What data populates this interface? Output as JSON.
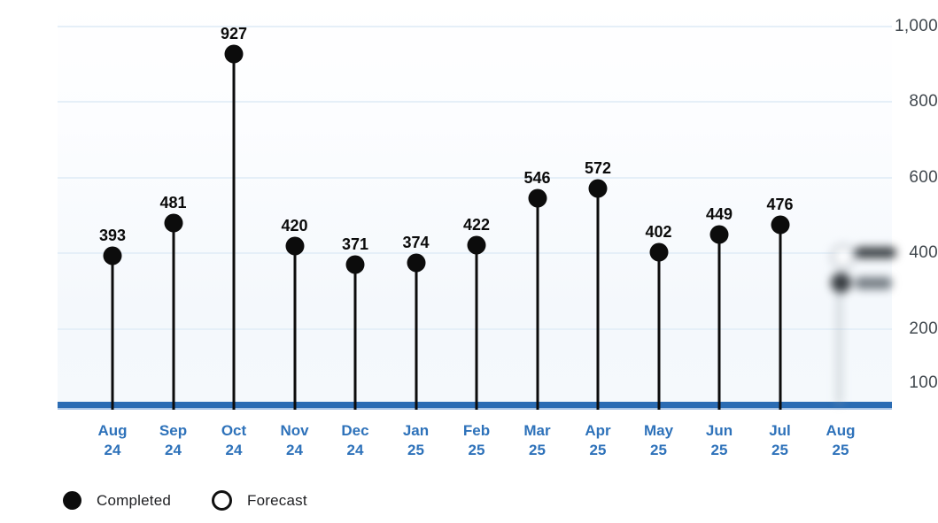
{
  "chart_data": {
    "type": "lollipop",
    "categories": [
      {
        "month": "Aug",
        "year": "24"
      },
      {
        "month": "Sep",
        "year": "24"
      },
      {
        "month": "Oct",
        "year": "24"
      },
      {
        "month": "Nov",
        "year": "24"
      },
      {
        "month": "Dec",
        "year": "24"
      },
      {
        "month": "Jan",
        "year": "25"
      },
      {
        "month": "Feb",
        "year": "25"
      },
      {
        "month": "Mar",
        "year": "25"
      },
      {
        "month": "Apr",
        "year": "25"
      },
      {
        "month": "May",
        "year": "25"
      },
      {
        "month": "Jun",
        "year": "25"
      },
      {
        "month": "Jul",
        "year": "25"
      },
      {
        "month": "Aug",
        "year": "25"
      }
    ],
    "series": [
      {
        "name": "Completed",
        "marker": "filled",
        "values": [
          393,
          481,
          927,
          420,
          371,
          374,
          422,
          546,
          572,
          402,
          449,
          476,
          null
        ]
      }
    ],
    "forecast": {
      "name": "Forecast",
      "marker": "hollow",
      "month": "Aug 25",
      "blurred": true,
      "value": null
    },
    "y_axis": {
      "ticks": [
        {
          "label": "1,000",
          "value": 1000
        },
        {
          "label": "800",
          "value": 800
        },
        {
          "label": "600",
          "value": 600
        },
        {
          "label": "400",
          "value": 400
        },
        {
          "label": "200",
          "value": 200
        },
        {
          "label": "100",
          "value": 100,
          "baseline": true
        }
      ],
      "range_top": 1000
    },
    "legend": [
      {
        "label": "Completed",
        "marker": "filled"
      },
      {
        "label": "Forecast",
        "marker": "hollow"
      }
    ],
    "grid": true,
    "legend_position": "bottom-left",
    "colors": {
      "marker": "#0c0c0c",
      "axis_line": "#2b6cb3",
      "x_tick_label": "#2e72ba",
      "y_tick_label": "#42494f",
      "gridline": "#e5eff8",
      "value_label": "#0b0b0b"
    }
  }
}
